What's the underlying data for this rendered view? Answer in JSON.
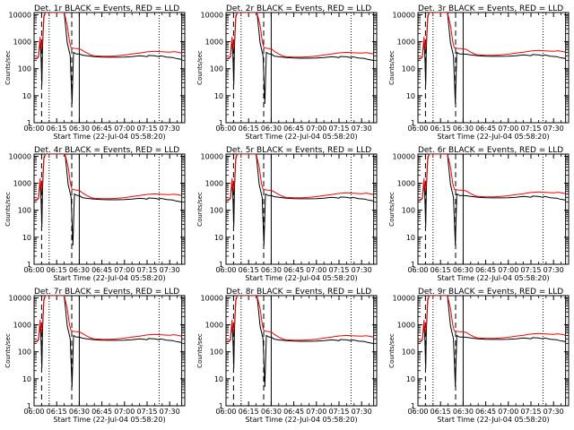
{
  "chart_data": {
    "type": "line",
    "shared": {
      "xlabel": "Start Time (22-Jul-04 05:58:20)",
      "ylabel": "Counts/sec",
      "x_tick_labels": [
        "06:00",
        "06:15",
        "06:30",
        "06:45",
        "07:00",
        "07:15",
        "07:30"
      ],
      "x_ticks_min": [
        0,
        15,
        30,
        45,
        60,
        75,
        90
      ],
      "xlim_min": [
        0,
        100
      ],
      "y_tick_labels": [
        "1",
        "10",
        "100",
        "1000",
        "10000"
      ],
      "y_ticks": [
        1,
        10,
        100,
        1000,
        10000
      ],
      "ylim": [
        1,
        12000
      ],
      "y_scale": "log",
      "series_colors": {
        "events": "#000000",
        "lld": "#ff0000"
      },
      "vertical_markers_min": {
        "dotted": [
          10,
          83
        ],
        "dashed": [
          5,
          25
        ],
        "solid": [
          30,
          98
        ]
      }
    },
    "panels": [
      {
        "title": "Det. 1r BLACK = Events, RED = LLD",
        "variant": 0
      },
      {
        "title": "Det. 2r BLACK = Events, RED = LLD",
        "variant": 1
      },
      {
        "title": "Det. 3r BLACK = Events, RED = LLD",
        "variant": 2
      },
      {
        "title": "Det. 4r BLACK = Events, RED = LLD",
        "variant": 1
      },
      {
        "title": "Det. 5r BLACK = Events, RED = LLD",
        "variant": 0
      },
      {
        "title": "Det. 6r BLACK = Events, RED = LLD",
        "variant": 2
      },
      {
        "title": "Det. 7r BLACK = Events, RED = LLD",
        "variant": 0
      },
      {
        "title": "Det. 8r BLACK = Events, RED = LLD",
        "variant": 1
      },
      {
        "title": "Det. 9r BLACK = Events, RED = LLD",
        "variant": 2
      }
    ],
    "series_templates": {
      "events": [
        [
          0,
          230
        ],
        [
          2,
          240
        ],
        [
          3,
          280
        ],
        [
          4,
          1200
        ],
        [
          4.6,
          300
        ],
        [
          5.2,
          25
        ],
        [
          5.6,
          600
        ],
        [
          6.5,
          8000
        ],
        [
          7.5,
          12000
        ],
        [
          8.5,
          12000
        ],
        [
          9.5,
          12000
        ],
        [
          20,
          12000
        ],
        [
          22,
          900
        ],
        [
          24,
          300
        ],
        [
          25.2,
          5
        ],
        [
          26.2,
          400
        ],
        [
          28,
          350
        ],
        [
          30,
          350
        ],
        [
          32,
          320
        ],
        [
          35,
          300
        ],
        [
          40,
          280
        ],
        [
          45,
          270
        ],
        [
          50,
          265
        ],
        [
          55,
          265
        ],
        [
          60,
          270
        ],
        [
          65,
          280
        ],
        [
          70,
          300
        ],
        [
          73,
          290
        ],
        [
          75,
          280
        ],
        [
          76,
          310
        ],
        [
          80,
          300
        ],
        [
          83,
          280
        ],
        [
          84,
          300
        ],
        [
          88,
          270
        ],
        [
          92,
          260
        ],
        [
          94,
          240
        ],
        [
          96,
          230
        ],
        [
          98,
          220
        ]
      ],
      "lld": [
        [
          0,
          240
        ],
        [
          2,
          250
        ],
        [
          3,
          300
        ],
        [
          4,
          1500
        ],
        [
          4.8,
          500
        ],
        [
          5.6,
          900
        ],
        [
          6.5,
          9000
        ],
        [
          7.5,
          12000
        ],
        [
          8.5,
          12000
        ],
        [
          17,
          12000
        ],
        [
          20,
          12000
        ],
        [
          22,
          4000
        ],
        [
          23.5,
          1000
        ],
        [
          24.5,
          600
        ],
        [
          27,
          560
        ],
        [
          30,
          550
        ],
        [
          32,
          480
        ],
        [
          35,
          380
        ],
        [
          38,
          320
        ],
        [
          40,
          300
        ],
        [
          45,
          290
        ],
        [
          50,
          290
        ],
        [
          55,
          300
        ],
        [
          60,
          320
        ],
        [
          65,
          350
        ],
        [
          70,
          380
        ],
        [
          75,
          420
        ],
        [
          80,
          440
        ],
        [
          83,
          430
        ],
        [
          86,
          420
        ],
        [
          90,
          410
        ],
        [
          93,
          430
        ],
        [
          96,
          400
        ],
        [
          98,
          380
        ]
      ]
    }
  }
}
